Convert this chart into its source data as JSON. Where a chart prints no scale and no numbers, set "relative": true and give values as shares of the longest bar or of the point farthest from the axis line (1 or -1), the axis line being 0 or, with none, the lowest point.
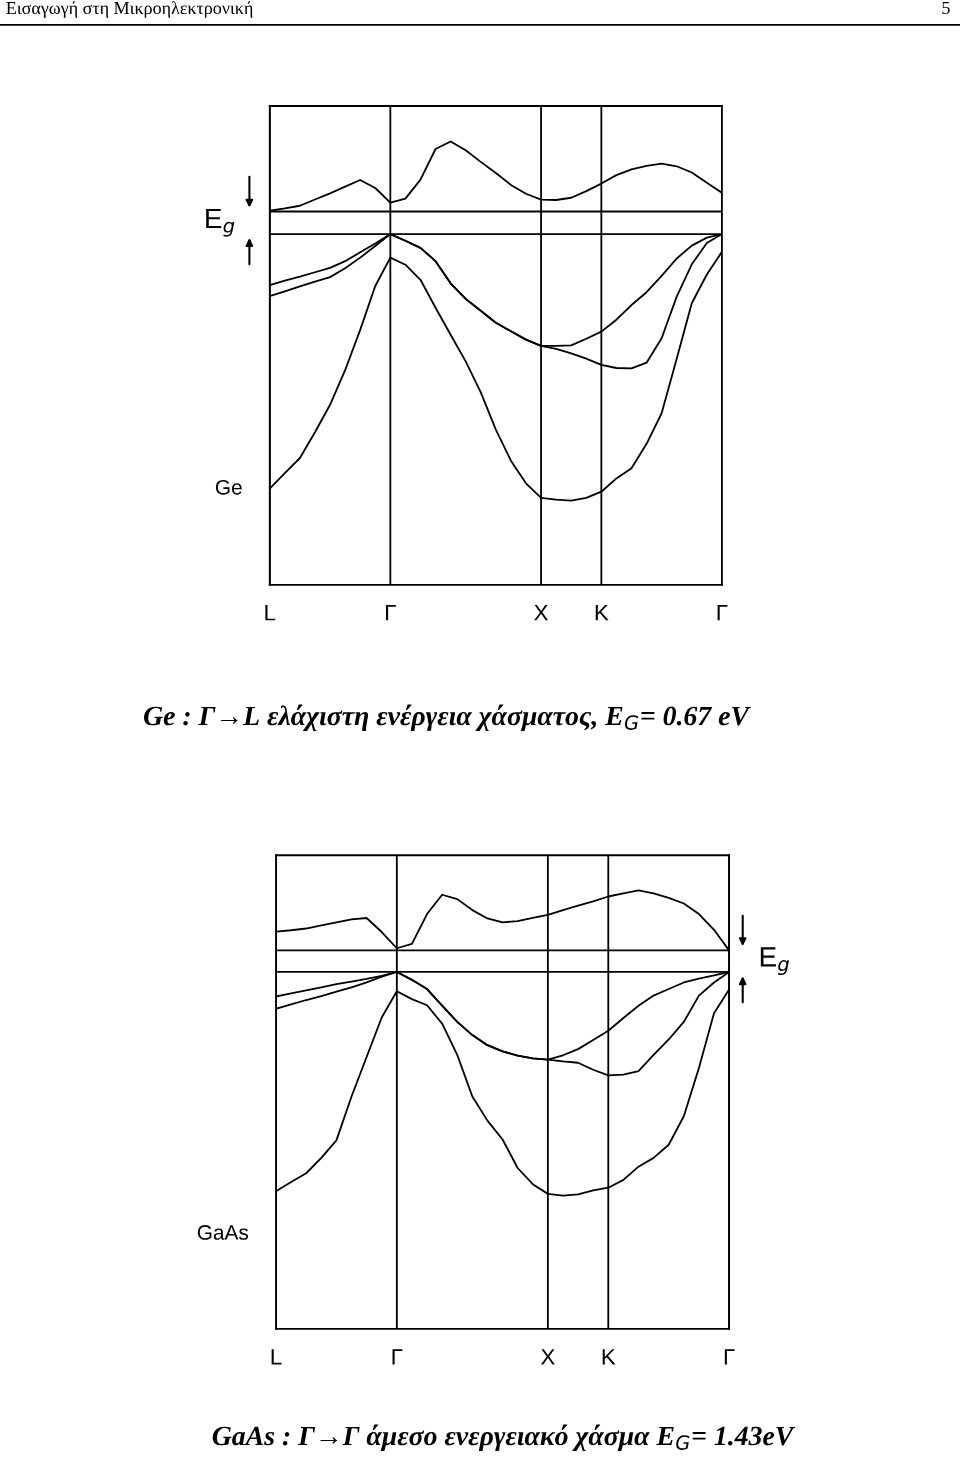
{
  "chart_data": [
    {
      "type": "line",
      "relative": true,
      "title": "Ge : Γ→L ελάχιστη ενέργεια χάσματος, E$_{G}$= 0.67 eV",
      "ylabel": "Ge",
      "annotations": [
        "Εισαγωγή στη Μικροηλεκτρονική",
        "5",
        "E$_{g}$"
      ],
      "categories": [
        "L",
        null,
        null,
        null,
        null,
        null,
        null,
        null,
        "Γ",
        null,
        null,
        null,
        null,
        null,
        null,
        null,
        null,
        null,
        "X",
        null,
        null,
        null,
        "K",
        null,
        null,
        null,
        null,
        null,
        null,
        null,
        "Γ"
      ],
      "tick_labels": "x",
      "grid": "x",
      "marker": "none",
      "line_style": "solid",
      "ref_lines": [
        {
          "axis": "y",
          "value": 0.791,
          "color": "#000000"
        },
        {
          "axis": "y",
          "value": 0.842,
          "color": "#000000"
        }
      ],
      "series": [
        {
          "color": "#000000",
          "values": [
            0.844,
            0.849,
            0.855,
            0.869,
            0.883,
            0.898,
            0.913,
            0.895,
            0.862,
            0.871,
            0.914,
            0.983,
            1.0,
            0.98,
            0.954,
            0.929,
            0.902,
            0.882,
            0.869,
            0.868,
            0.873,
            0.888,
            0.905,
            0.924,
            0.937,
            0.945,
            0.95,
            0.944,
            0.93,
            0.907,
            0.884
          ]
        },
        {
          "color": "#000000",
          "values": [
            0.676,
            0.686,
            0.695,
            0.705,
            0.715,
            0.73,
            0.75,
            0.77,
            0.791,
            0.776,
            0.76,
            0.73,
            0.68,
            0.645,
            0.618,
            0.591,
            0.572,
            0.553,
            0.539,
            0.539,
            0.54,
            0.555,
            0.571,
            0.598,
            0.631,
            0.66,
            0.697,
            0.736,
            0.765,
            0.783,
            0.791
          ]
        },
        {
          "color": "#000000",
          "values": [
            0.651,
            0.662,
            0.673,
            0.684,
            0.694,
            0.714,
            0.738,
            0.764,
            0.791,
            0.776,
            0.76,
            0.73,
            0.68,
            0.645,
            0.618,
            0.591,
            0.572,
            0.553,
            0.539,
            0.532,
            0.522,
            0.51,
            0.496,
            0.489,
            0.488,
            0.501,
            0.556,
            0.65,
            0.723,
            0.771,
            0.791
          ]
        },
        {
          "color": "#000000",
          "values": [
            0.217,
            0.252,
            0.286,
            0.344,
            0.406,
            0.484,
            0.575,
            0.674,
            0.738,
            0.722,
            0.688,
            0.625,
            0.564,
            0.504,
            0.434,
            0.35,
            0.28,
            0.229,
            0.196,
            0.192,
            0.19,
            0.196,
            0.21,
            0.24,
            0.263,
            0.318,
            0.387,
            0.51,
            0.635,
            0.7,
            0.751
          ]
        }
      ]
    },
    {
      "type": "line",
      "relative": true,
      "title": "GaAs : Γ→Γ άμεσο ενεργειακό χάσμα E$_{G}$= 1.43eV",
      "ylabel": "GaAs",
      "annotations": [
        "E$_{g}$"
      ],
      "categories": [
        "L",
        null,
        null,
        null,
        null,
        null,
        null,
        null,
        "Γ",
        null,
        null,
        null,
        null,
        null,
        null,
        null,
        null,
        null,
        "X",
        null,
        null,
        null,
        "K",
        null,
        null,
        null,
        null,
        null,
        null,
        null,
        "Γ"
      ],
      "tick_labels": "x",
      "grid": "x",
      "marker": "none",
      "line_style": "solid",
      "ref_lines": [
        {
          "axis": "y",
          "value": 0.814,
          "color": "#000000"
        },
        {
          "axis": "y",
          "value": 0.863,
          "color": "#000000"
        }
      ],
      "series": [
        {
          "color": "#000000",
          "values": [
            0.906,
            0.909,
            0.913,
            0.92,
            0.927,
            0.934,
            0.937,
            0.905,
            0.868,
            0.878,
            0.946,
            0.99,
            0.98,
            0.955,
            0.936,
            0.927,
            0.93,
            0.937,
            0.944,
            0.955,
            0.965,
            0.975,
            0.986,
            0.993,
            1.0,
            0.993,
            0.983,
            0.97,
            0.946,
            0.91,
            0.863
          ]
        },
        {
          "color": "#000000",
          "values": [
            0.758,
            0.765,
            0.772,
            0.779,
            0.786,
            0.792,
            0.798,
            0.805,
            0.814,
            0.796,
            0.775,
            0.737,
            0.7,
            0.67,
            0.647,
            0.633,
            0.623,
            0.617,
            0.614,
            0.624,
            0.638,
            0.659,
            0.68,
            0.709,
            0.737,
            0.76,
            0.775,
            0.79,
            0.799,
            0.806,
            0.814
          ]
        },
        {
          "color": "#000000",
          "values": [
            0.73,
            0.74,
            0.75,
            0.759,
            0.769,
            0.779,
            0.79,
            0.803,
            0.814,
            0.796,
            0.775,
            0.737,
            0.7,
            0.67,
            0.647,
            0.633,
            0.623,
            0.617,
            0.614,
            0.61,
            0.607,
            0.591,
            0.578,
            0.58,
            0.588,
            0.625,
            0.66,
            0.7,
            0.76,
            0.79,
            0.814
          ]
        },
        {
          "color": "#000000",
          "values": [
            0.314,
            0.335,
            0.355,
            0.39,
            0.43,
            0.53,
            0.62,
            0.71,
            0.77,
            0.752,
            0.738,
            0.696,
            0.625,
            0.53,
            0.475,
            0.432,
            0.367,
            0.33,
            0.308,
            0.304,
            0.307,
            0.316,
            0.322,
            0.34,
            0.37,
            0.39,
            0.42,
            0.485,
            0.595,
            0.72,
            0.774
          ]
        }
      ]
    }
  ]
}
